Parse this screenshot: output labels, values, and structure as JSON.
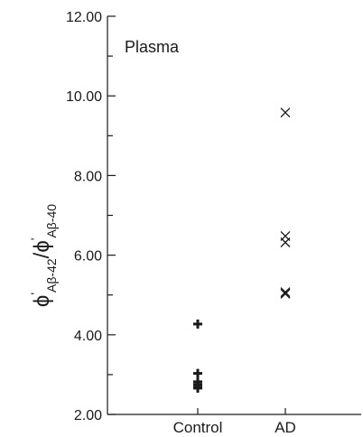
{
  "chart_data": {
    "type": "scatter",
    "title": "",
    "annotation": "Plasma",
    "ylabel": {
      "phi1": "ϕ",
      "prime1": "'",
      "sub1": "Aβ-42",
      "slash": "/",
      "phi2": "ϕ",
      "prime2": "'",
      "sub2": "Aβ-40"
    },
    "xlabel": "",
    "ylim": [
      2.0,
      12.0
    ],
    "yticks": [
      "2.00",
      "4.00",
      "6.00",
      "8.00",
      "10.00",
      "12.00"
    ],
    "yticks_values": [
      2,
      4,
      6,
      8,
      10,
      12
    ],
    "minor_ytick_step": 1,
    "categories": [
      "Control",
      "AD"
    ],
    "grid": false,
    "series": [
      {
        "category": "Control",
        "marker": "plus",
        "values": [
          4.27,
          3.03,
          2.82,
          2.75,
          2.68,
          2.66
        ]
      },
      {
        "category": "AD",
        "marker": "cross",
        "values": [
          9.58,
          6.48,
          6.32,
          5.07,
          5.03
        ]
      }
    ]
  }
}
